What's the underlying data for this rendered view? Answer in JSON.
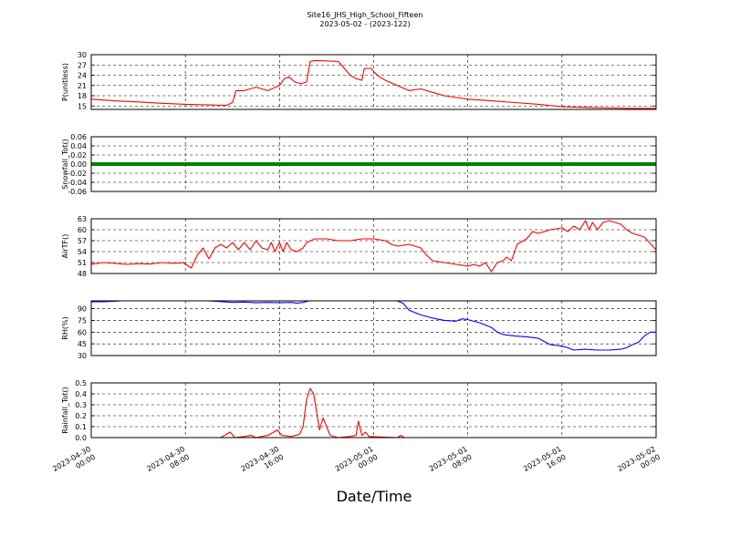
{
  "figure": {
    "title_line1": "Site16_JHS_High_School_Fifteen",
    "title_line2": "2023-05-02 - (2023-122)",
    "xlabel": "Date/Time"
  },
  "chart_data": {
    "type": "line",
    "x_range_hours": [
      0,
      48
    ],
    "x_ticks": [
      {
        "hour": 0,
        "line1": "2023-04-30",
        "line2": "00:00"
      },
      {
        "hour": 8,
        "line1": "2023-04-30",
        "line2": "08:00"
      },
      {
        "hour": 16,
        "line1": "2023-04-30",
        "line2": "16:00"
      },
      {
        "hour": 24,
        "line1": "2023-05-01",
        "line2": "00:00"
      },
      {
        "hour": 32,
        "line1": "2023-05-01",
        "line2": "08:00"
      },
      {
        "hour": 40,
        "line1": "2023-05-01",
        "line2": "16:00"
      },
      {
        "hour": 48,
        "line1": "2023-05-02",
        "line2": "00:00"
      }
    ],
    "grid": true,
    "panels": [
      {
        "ylabel": "P(unitless)",
        "color": "#ff0000",
        "ylim": [
          14,
          30
        ],
        "yticks": [
          15,
          18,
          21,
          24,
          27,
          30
        ],
        "tick_decimals": 0,
        "points": [
          [
            0,
            17
          ],
          [
            2,
            16.5
          ],
          [
            4,
            16.2
          ],
          [
            6,
            15.8
          ],
          [
            8,
            15.5
          ],
          [
            10,
            15.3
          ],
          [
            11.5,
            15.2
          ],
          [
            12,
            16
          ],
          [
            12.3,
            19.5
          ],
          [
            13,
            19.5
          ],
          [
            14,
            20.5
          ],
          [
            15,
            19.5
          ],
          [
            16,
            21
          ],
          [
            16.4,
            23
          ],
          [
            16.8,
            23.5
          ],
          [
            17.3,
            22
          ],
          [
            17.8,
            21.5
          ],
          [
            18.3,
            22
          ],
          [
            18.6,
            28
          ],
          [
            19,
            28.3
          ],
          [
            20,
            28.2
          ],
          [
            21,
            28
          ],
          [
            21.5,
            26
          ],
          [
            22,
            24
          ],
          [
            22.5,
            23
          ],
          [
            23,
            22.5
          ],
          [
            23.2,
            26
          ],
          [
            23.8,
            26
          ],
          [
            24,
            25
          ],
          [
            24.5,
            23.5
          ],
          [
            25,
            22.5
          ],
          [
            26,
            21
          ],
          [
            27,
            19.5
          ],
          [
            28,
            20
          ],
          [
            29,
            19
          ],
          [
            30,
            18
          ],
          [
            32,
            17
          ],
          [
            34,
            16.5
          ],
          [
            36,
            16
          ],
          [
            38,
            15.5
          ],
          [
            40,
            14.8
          ],
          [
            42,
            14.6
          ],
          [
            44,
            14.4
          ],
          [
            46,
            14.3
          ],
          [
            48,
            14.3
          ]
        ]
      },
      {
        "ylabel": "Snowfall_Tot()",
        "color": "#008000",
        "ylim": [
          -0.06,
          0.06
        ],
        "yticks": [
          -0.06,
          -0.04,
          -0.02,
          0.0,
          0.02,
          0.04,
          0.06
        ],
        "tick_decimals": 2,
        "points": [
          [
            0,
            0
          ],
          [
            8,
            0
          ],
          [
            16,
            0
          ],
          [
            24,
            0
          ],
          [
            32,
            0
          ],
          [
            40,
            0
          ],
          [
            48,
            0
          ]
        ]
      },
      {
        "ylabel": "AirTF()",
        "color": "#ff0000",
        "ylim": [
          48,
          63
        ],
        "yticks": [
          48,
          51,
          54,
          57,
          60,
          63
        ],
        "tick_decimals": 0,
        "points": [
          [
            0,
            50.5
          ],
          [
            1,
            51
          ],
          [
            2,
            50.8
          ],
          [
            3,
            50.5
          ],
          [
            4,
            50.7
          ],
          [
            5,
            50.6
          ],
          [
            6,
            51
          ],
          [
            7,
            50.8
          ],
          [
            8,
            51
          ],
          [
            7.8,
            51
          ],
          [
            8.5,
            49.5
          ],
          [
            9,
            53
          ],
          [
            9.5,
            55
          ],
          [
            10,
            52
          ],
          [
            10.5,
            55
          ],
          [
            11,
            56
          ],
          [
            11.5,
            55
          ],
          [
            12,
            56.5
          ],
          [
            12.5,
            54.5
          ],
          [
            13,
            56.5
          ],
          [
            13.5,
            54.5
          ],
          [
            14,
            57
          ],
          [
            14.5,
            55
          ],
          [
            15,
            54.5
          ],
          [
            15.3,
            56.5
          ],
          [
            15.6,
            54
          ],
          [
            16,
            56.5
          ],
          [
            16.3,
            54
          ],
          [
            16.6,
            56.5
          ],
          [
            17,
            54.5
          ],
          [
            17.5,
            54
          ],
          [
            18,
            55
          ],
          [
            18.3,
            56.5
          ],
          [
            19,
            57.5
          ],
          [
            20,
            57.5
          ],
          [
            21,
            57
          ],
          [
            22,
            57
          ],
          [
            23,
            57.5
          ],
          [
            24,
            57.5
          ],
          [
            25,
            57
          ],
          [
            25.5,
            56
          ],
          [
            26,
            55.5
          ],
          [
            27,
            56
          ],
          [
            28,
            55
          ],
          [
            28.5,
            53
          ],
          [
            29,
            51.5
          ],
          [
            30,
            51
          ],
          [
            31,
            50.5
          ],
          [
            32,
            50
          ],
          [
            32.5,
            50.5
          ],
          [
            33,
            50
          ],
          [
            33.5,
            51
          ],
          [
            34,
            48.5
          ],
          [
            34.5,
            51
          ],
          [
            35,
            51.5
          ],
          [
            35.3,
            52.5
          ],
          [
            35.7,
            51.5
          ],
          [
            36.2,
            56
          ],
          [
            37,
            57.5
          ],
          [
            37.5,
            59.5
          ],
          [
            38,
            59
          ],
          [
            39,
            60
          ],
          [
            40,
            60.5
          ],
          [
            40.5,
            59.5
          ],
          [
            41,
            61
          ],
          [
            41.5,
            60
          ],
          [
            42,
            62.5
          ],
          [
            42.3,
            60
          ],
          [
            42.6,
            62
          ],
          [
            43,
            60
          ],
          [
            43.5,
            62
          ],
          [
            44,
            62.5
          ],
          [
            45,
            61.5
          ],
          [
            45.5,
            60
          ],
          [
            46,
            59
          ],
          [
            47,
            58
          ],
          [
            48,
            54.5
          ]
        ]
      },
      {
        "ylabel": "RH(%)",
        "color": "#0000ff",
        "ylim": [
          30,
          100
        ],
        "yticks": [
          30,
          45,
          60,
          75,
          90
        ],
        "tick_decimals": 0,
        "points": [
          [
            0,
            99
          ],
          [
            1,
            99
          ],
          [
            2,
            99.5
          ],
          [
            2.5,
            100
          ],
          [
            10,
            100
          ],
          [
            12,
            98
          ],
          [
            13,
            98.5
          ],
          [
            14,
            97.5
          ],
          [
            15,
            98
          ],
          [
            16,
            97.5
          ],
          [
            17,
            98
          ],
          [
            17.5,
            97
          ],
          [
            18,
            98
          ],
          [
            18.5,
            100
          ],
          [
            26,
            100
          ],
          [
            26.5,
            97
          ],
          [
            27,
            88
          ],
          [
            28,
            82
          ],
          [
            29,
            78
          ],
          [
            30,
            75
          ],
          [
            31,
            74
          ],
          [
            31.5,
            77
          ],
          [
            32,
            76
          ],
          [
            33,
            72
          ],
          [
            34,
            66
          ],
          [
            34.5,
            60
          ],
          [
            35,
            57
          ],
          [
            36,
            55
          ],
          [
            37,
            54
          ],
          [
            38,
            52
          ],
          [
            38.5,
            48
          ],
          [
            39,
            44
          ],
          [
            40,
            42
          ],
          [
            40.5,
            40
          ],
          [
            41,
            37
          ],
          [
            42,
            38
          ],
          [
            43,
            37
          ],
          [
            44,
            37
          ],
          [
            45,
            38
          ],
          [
            45.5,
            40
          ],
          [
            46,
            44
          ],
          [
            46.5,
            47
          ],
          [
            47,
            55
          ],
          [
            47.5,
            60
          ],
          [
            48,
            60
          ]
        ]
      },
      {
        "ylabel": "Rainfall_Tot()",
        "color": "#ff0000",
        "ylim": [
          0,
          0.5
        ],
        "yticks": [
          0.0,
          0.1,
          0.2,
          0.3,
          0.4,
          0.5
        ],
        "tick_decimals": 1,
        "points": [
          [
            0,
            0
          ],
          [
            11,
            0
          ],
          [
            11.8,
            0.05
          ],
          [
            12.2,
            0
          ],
          [
            13,
            0.01
          ],
          [
            13.6,
            0.02
          ],
          [
            14,
            0
          ],
          [
            15,
            0.02
          ],
          [
            15.5,
            0.05
          ],
          [
            15.8,
            0.07
          ],
          [
            16.2,
            0.02
          ],
          [
            17,
            0.01
          ],
          [
            17.7,
            0.03
          ],
          [
            18,
            0.1
          ],
          [
            18.3,
            0.35
          ],
          [
            18.6,
            0.45
          ],
          [
            18.9,
            0.4
          ],
          [
            19.2,
            0.2
          ],
          [
            19.4,
            0.07
          ],
          [
            19.7,
            0.18
          ],
          [
            20,
            0.1
          ],
          [
            20.3,
            0.02
          ],
          [
            21,
            0
          ],
          [
            22,
            0.01
          ],
          [
            22.5,
            0.02
          ],
          [
            22.7,
            0.15
          ],
          [
            23,
            0.02
          ],
          [
            23.3,
            0.05
          ],
          [
            23.6,
            0.01
          ],
          [
            26,
            0
          ],
          [
            26.3,
            0.02
          ],
          [
            26.6,
            0
          ],
          [
            48,
            0
          ]
        ]
      }
    ]
  }
}
